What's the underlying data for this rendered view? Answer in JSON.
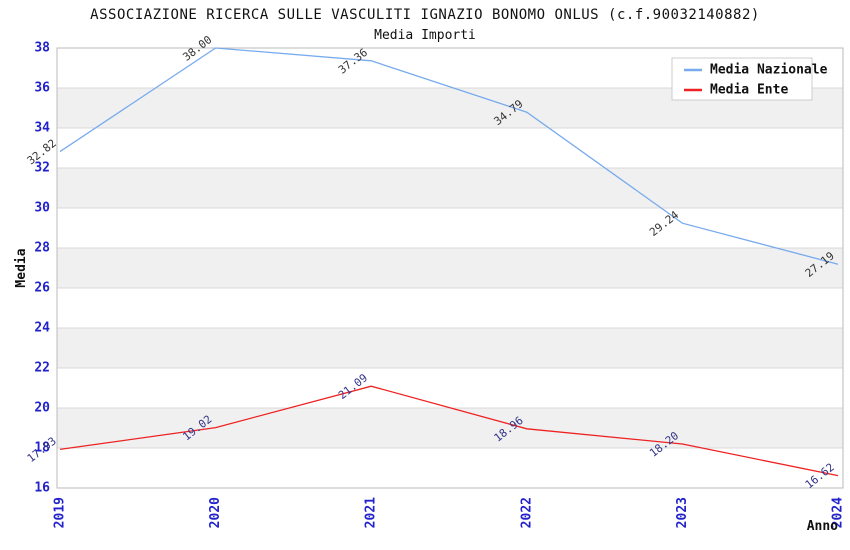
{
  "title": "ASSOCIAZIONE RICERCA SULLE VASCULITI IGNAZIO BONOMO ONLUS (c.f.90032140882)",
  "subtitle": "Media Importi",
  "chart_data": {
    "type": "line",
    "x": [
      "2019",
      "2020",
      "2021",
      "2022",
      "2023",
      "2024"
    ],
    "series": [
      {
        "name": "Media Nazionale",
        "color": "#77aaee",
        "label_color": "#333333",
        "values": [
          32.82,
          38.0,
          37.36,
          34.79,
          29.24,
          27.19
        ]
      },
      {
        "name": "Media Ente",
        "color": "#ee2222",
        "label_color": "#333388",
        "values": [
          17.93,
          19.02,
          21.09,
          18.96,
          18.2,
          16.62
        ]
      }
    ],
    "xlabel": "Anno",
    "ylabel": "Media",
    "ylim": [
      16,
      38
    ],
    "yticks": [
      16,
      18,
      20,
      22,
      24,
      26,
      28,
      30,
      32,
      34,
      36,
      38
    ],
    "grid": true,
    "legend_position": "top-right",
    "band_color": "#f0f0f0",
    "grid_color": "#d9d9d9",
    "axis_color": "#bbbbbb",
    "tick_label_color": "#2222cc",
    "label_decimals": 2
  }
}
